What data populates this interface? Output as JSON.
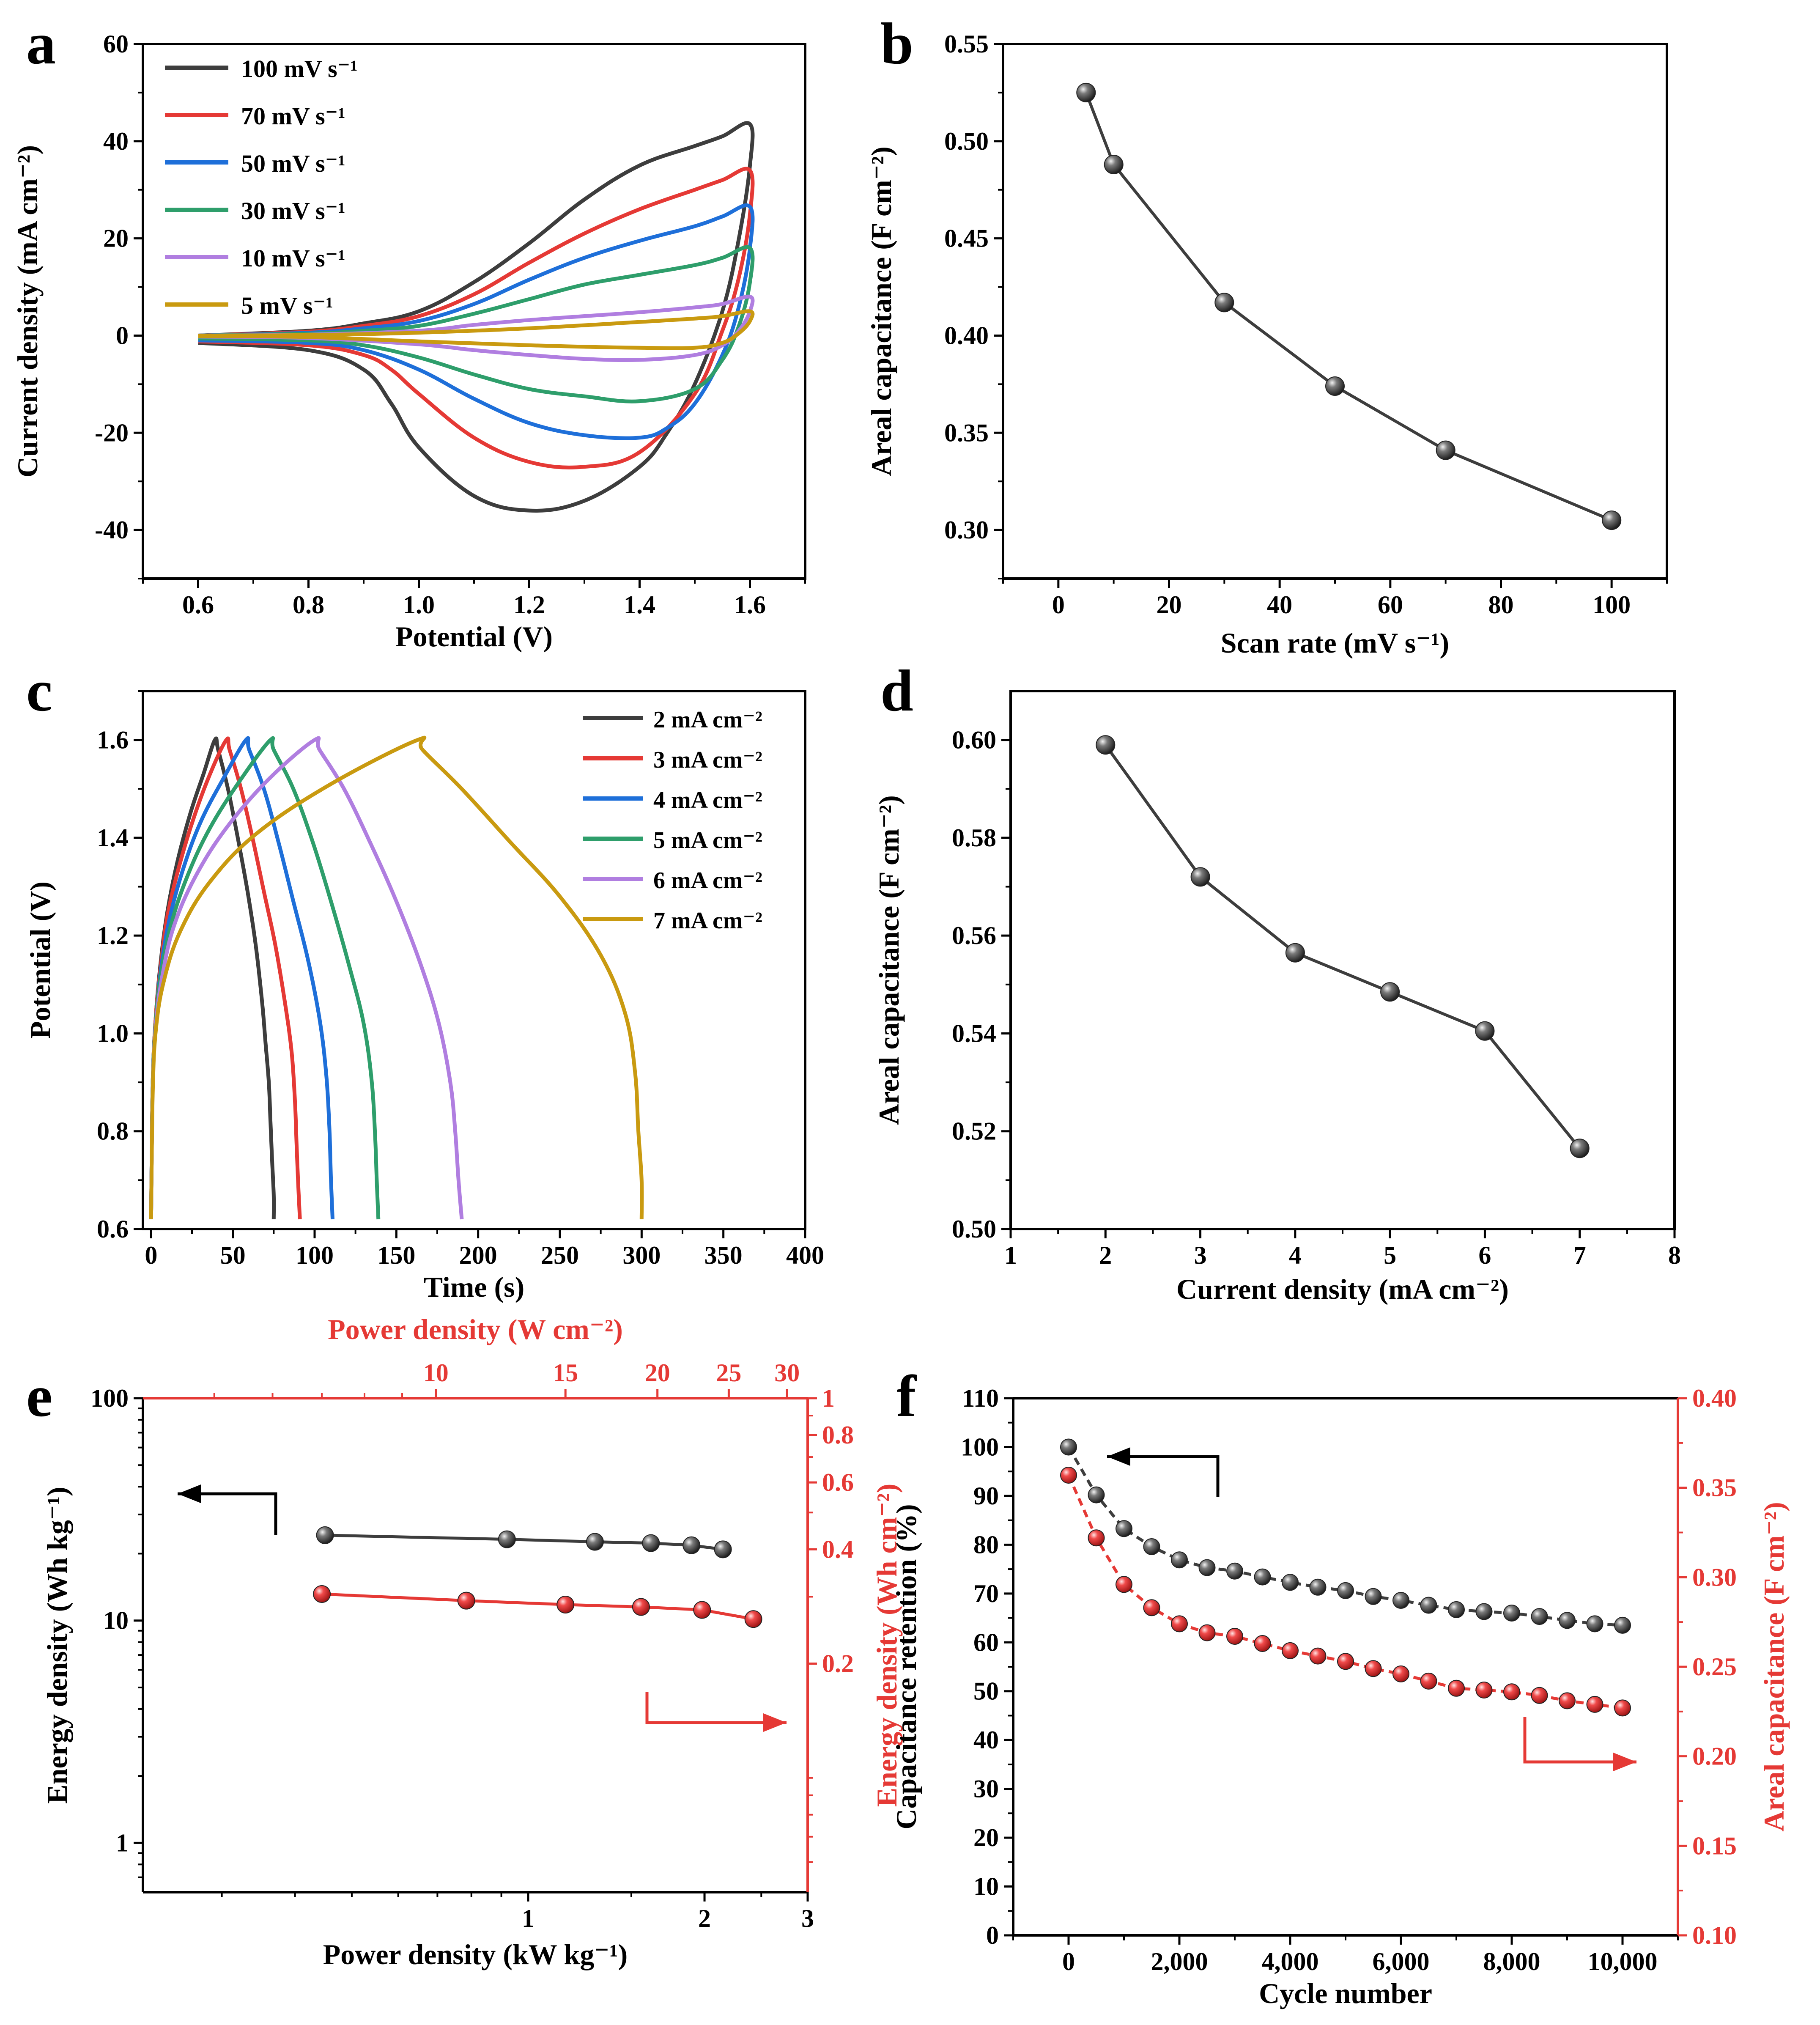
{
  "chart_data": [
    {
      "panel": "a",
      "type": "line",
      "xlabel": "Potential (V)",
      "ylabel": "Current density (mA cm⁻²)",
      "xlim": [
        0.5,
        1.7
      ],
      "ylim": [
        -50,
        60
      ],
      "xticks": [
        "0.6",
        "0.8",
        "1.0",
        "1.2",
        "1.4",
        "1.6"
      ],
      "yticks": [
        "-40",
        "-20",
        "0",
        "20",
        "40",
        "60"
      ],
      "legend": "top-left",
      "series": [
        {
          "name": "100 mV s⁻¹",
          "color": "#3d3d3d",
          "x": [
            0.6,
            0.8,
            0.9,
            1.0,
            1.1,
            1.2,
            1.3,
            1.4,
            1.5,
            1.55,
            1.6,
            1.6,
            1.58,
            1.55,
            1.5,
            1.45,
            1.4,
            1.3,
            1.2,
            1.1,
            1.0,
            0.95,
            0.9,
            0.8,
            0.6
          ],
          "y": [
            0,
            1,
            2.5,
            5,
            11,
            19,
            28,
            35,
            39,
            41,
            43.5,
            35,
            20,
            5,
            -10,
            -20,
            -27,
            -34,
            -36,
            -33,
            -23,
            -14,
            -7,
            -3,
            -1.5
          ]
        },
        {
          "name": "70 mV s⁻¹",
          "color": "#e53935",
          "x": [
            0.6,
            0.8,
            0.9,
            1.0,
            1.1,
            1.2,
            1.3,
            1.4,
            1.5,
            1.55,
            1.6,
            1.6,
            1.58,
            1.55,
            1.5,
            1.4,
            1.3,
            1.2,
            1.1,
            1.0,
            0.95,
            0.9,
            0.8,
            0.6
          ],
          "y": [
            0,
            0.8,
            2,
            4,
            8.5,
            15,
            21,
            26,
            30,
            32,
            34,
            25,
            12,
            1,
            -12,
            -24,
            -27,
            -26,
            -21,
            -12,
            -7,
            -4,
            -2,
            -1.2
          ]
        },
        {
          "name": "50 mV s⁻¹",
          "color": "#1e6fd9",
          "x": [
            0.6,
            0.8,
            0.9,
            1.0,
            1.1,
            1.2,
            1.3,
            1.4,
            1.5,
            1.55,
            1.6,
            1.6,
            1.58,
            1.55,
            1.5,
            1.45,
            1.4,
            1.3,
            1.2,
            1.1,
            1.0,
            0.9,
            0.8,
            0.6
          ],
          "y": [
            0,
            0.6,
            1.5,
            3,
            6.5,
            11.5,
            16,
            19.5,
            22.5,
            24.5,
            26.5,
            18,
            6,
            -4,
            -14,
            -19,
            -21,
            -20.5,
            -18,
            -13,
            -7,
            -3,
            -1.5,
            -1
          ]
        },
        {
          "name": "30 mV s⁻¹",
          "color": "#2e9e6b",
          "x": [
            0.6,
            0.8,
            0.9,
            1.0,
            1.1,
            1.2,
            1.3,
            1.4,
            1.5,
            1.55,
            1.6,
            1.6,
            1.58,
            1.55,
            1.5,
            1.4,
            1.3,
            1.2,
            1.1,
            1.0,
            0.9,
            0.8,
            0.6
          ],
          "y": [
            0,
            0.4,
            1,
            2,
            4.5,
            7.5,
            10.5,
            12.5,
            14.5,
            16,
            18,
            11,
            2,
            -5,
            -11,
            -13.5,
            -12.5,
            -11,
            -8,
            -4.5,
            -2,
            -1,
            -0.6
          ]
        },
        {
          "name": "10 mV s⁻¹",
          "color": "#b07ee0",
          "x": [
            0.6,
            0.8,
            1.0,
            1.1,
            1.2,
            1.3,
            1.4,
            1.5,
            1.55,
            1.6,
            1.6,
            1.58,
            1.55,
            1.5,
            1.4,
            1.3,
            1.2,
            1.1,
            1.0,
            0.8,
            0.6
          ],
          "y": [
            0,
            0.2,
            1,
            2.2,
            3.2,
            4,
            4.8,
            5.8,
            6.5,
            8,
            5,
            1,
            -2,
            -4,
            -5,
            -4.8,
            -4,
            -3,
            -1.8,
            -0.5,
            -0.2
          ]
        },
        {
          "name": "5 mV s⁻¹",
          "color": "#c99a10",
          "x": [
            0.6,
            0.8,
            1.0,
            1.2,
            1.4,
            1.5,
            1.55,
            1.6,
            1.6,
            1.58,
            1.55,
            1.5,
            1.4,
            1.3,
            1.2,
            1.0,
            0.8,
            0.6
          ],
          "y": [
            0,
            0.1,
            0.6,
            1.5,
            2.8,
            3.5,
            4,
            5,
            3,
            0.5,
            -1.5,
            -2.5,
            -2.5,
            -2.3,
            -2,
            -1.2,
            -0.3,
            -0.1
          ]
        }
      ]
    },
    {
      "panel": "b",
      "type": "line",
      "xlabel": "Scan rate (mV s⁻¹)",
      "ylabel": "Areal capacitance (F cm⁻²)",
      "xlim": [
        -10,
        110
      ],
      "ylim": [
        0.275,
        0.55
      ],
      "xticks": [
        "0",
        "20",
        "40",
        "60",
        "80",
        "100"
      ],
      "yticks": [
        "0.30",
        "0.35",
        "0.40",
        "0.45",
        "0.50",
        "0.55"
      ],
      "series": [
        {
          "name": "Areal capacitance",
          "color": "#3d3d3d",
          "x": [
            5,
            10,
            30,
            50,
            70,
            100
          ],
          "y": [
            0.525,
            0.488,
            0.417,
            0.374,
            0.341,
            0.305
          ]
        }
      ]
    },
    {
      "panel": "c",
      "type": "line",
      "xlabel": "Time (s)",
      "ylabel": "Potential (V)",
      "xlim": [
        -5,
        400
      ],
      "ylim": [
        0.6,
        1.7
      ],
      "xticks": [
        "0",
        "50",
        "100",
        "150",
        "200",
        "250",
        "300",
        "350",
        "400"
      ],
      "yticks": [
        "0.6",
        "0.8",
        "1.0",
        "1.2",
        "1.4",
        "1.6"
      ],
      "legend": "top-right",
      "series": [
        {
          "name": "2 mA cm⁻²",
          "color": "#3d3d3d",
          "x": [
            0,
            1,
            3,
            6,
            10,
            16,
            24,
            32,
            39,
            41,
            47,
            53,
            59,
            64,
            68,
            70,
            72,
            73,
            74,
            75,
            75
          ],
          "y": [
            0.62,
            0.9,
            1.04,
            1.15,
            1.25,
            1.35,
            1.45,
            1.53,
            1.6,
            1.58,
            1.5,
            1.4,
            1.29,
            1.18,
            1.06,
            0.98,
            0.9,
            0.82,
            0.74,
            0.67,
            0.62
          ]
        },
        {
          "name": "3 mA cm⁻²",
          "color": "#e53935",
          "x": [
            0,
            1,
            3,
            6,
            10,
            17,
            26,
            36,
            46,
            48,
            55,
            62,
            69,
            76,
            82,
            86,
            88,
            89,
            90,
            91
          ],
          "y": [
            0.62,
            0.9,
            1.04,
            1.14,
            1.24,
            1.34,
            1.44,
            1.53,
            1.6,
            1.58,
            1.5,
            1.4,
            1.29,
            1.18,
            1.06,
            0.96,
            0.86,
            0.77,
            0.69,
            0.62
          ]
        },
        {
          "name": "4 mA cm⁻²",
          "color": "#1e6fd9",
          "x": [
            0,
            1,
            3,
            6,
            11,
            19,
            30,
            44,
            58,
            60,
            69,
            78,
            87,
            96,
            103,
            107,
            109,
            110,
            111
          ],
          "y": [
            0.62,
            0.9,
            1.03,
            1.13,
            1.23,
            1.33,
            1.43,
            1.52,
            1.6,
            1.58,
            1.5,
            1.39,
            1.27,
            1.15,
            1.03,
            0.92,
            0.81,
            0.7,
            0.62
          ]
        },
        {
          "name": "5 mA cm⁻²",
          "color": "#2e9e6b",
          "x": [
            0,
            1,
            3,
            6,
            12,
            22,
            36,
            55,
            73,
            75,
            87,
            99,
            110,
            121,
            130,
            135,
            137,
            138,
            139
          ],
          "y": [
            0.62,
            0.9,
            1.03,
            1.12,
            1.22,
            1.32,
            1.42,
            1.52,
            1.6,
            1.58,
            1.5,
            1.39,
            1.27,
            1.14,
            1.02,
            0.9,
            0.79,
            0.7,
            0.62
          ]
        },
        {
          "name": "6 mA cm⁻²",
          "color": "#b07ee0",
          "x": [
            0,
            1,
            3,
            7,
            14,
            27,
            46,
            72,
            100,
            103,
            118,
            134,
            150,
            165,
            176,
            183,
            186,
            188,
            190
          ],
          "y": [
            0.62,
            0.89,
            1.02,
            1.12,
            1.22,
            1.32,
            1.42,
            1.52,
            1.6,
            1.58,
            1.5,
            1.39,
            1.27,
            1.14,
            1.02,
            0.9,
            0.8,
            0.7,
            0.62
          ]
        },
        {
          "name": "7 mA cm⁻²",
          "color": "#c99a10",
          "x": [
            0,
            1,
            3,
            8,
            18,
            36,
            65,
            110,
            163,
            166,
            190,
            220,
            250,
            275,
            290,
            296,
            298,
            300,
            300
          ],
          "y": [
            0.62,
            0.88,
            1.01,
            1.11,
            1.21,
            1.31,
            1.41,
            1.51,
            1.6,
            1.58,
            1.5,
            1.39,
            1.28,
            1.16,
            1.04,
            0.92,
            0.8,
            0.7,
            0.62
          ]
        }
      ]
    },
    {
      "panel": "d",
      "type": "line",
      "xlabel": "Current density (mA cm⁻²)",
      "ylabel": "Areal capacitance (F cm⁻²)",
      "xlim": [
        1,
        8
      ],
      "ylim": [
        0.5,
        0.61
      ],
      "xticks": [
        "1",
        "2",
        "3",
        "4",
        "5",
        "6",
        "7",
        "8"
      ],
      "yticks": [
        "0.50",
        "0.52",
        "0.54",
        "0.56",
        "0.58",
        "0.60"
      ],
      "series": [
        {
          "name": "Areal capacitance",
          "color": "#3d3d3d",
          "x": [
            2,
            3,
            4,
            5,
            6,
            7
          ],
          "y": [
            0.599,
            0.572,
            0.5565,
            0.5485,
            0.5405,
            0.5165
          ]
        }
      ]
    },
    {
      "panel": "e",
      "type": "line",
      "xlabel": "Power density (kW kg⁻¹)",
      "ylabel": "Energy density (Wh kg⁻¹)",
      "x2label": "Power density (W cm⁻²)",
      "y2label": "Energy density (Wh cm⁻²)",
      "xscale": "log",
      "yscale": "log",
      "xlim": [
        0.22,
        3
      ],
      "ylim": [
        0.6,
        100
      ],
      "x2lim": [
        4,
        32
      ],
      "y2lim": [
        0.05,
        1
      ],
      "xticks": [
        "1",
        "2",
        "3"
      ],
      "yticks": [
        "1",
        "10",
        "100"
      ],
      "x2ticks": [
        "10",
        "15",
        "20",
        "25",
        "30"
      ],
      "y2ticks": [
        "0.2",
        "0.4",
        "0.6",
        "0.8",
        "1"
      ],
      "series": [
        {
          "name": "Energy density (Wh kg⁻¹)",
          "color": "#3d3d3d",
          "axis": "left-bottom",
          "x": [
            0.45,
            0.92,
            1.3,
            1.62,
            1.9,
            2.15
          ],
          "y": [
            24.2,
            23.2,
            22.6,
            22.3,
            21.8,
            20.9
          ]
        },
        {
          "name": "Energy density (Wh cm⁻²)",
          "color": "#e53935",
          "axis": "right-top",
          "x": [
            7,
            11,
            15,
            19,
            23,
            27
          ],
          "y": [
            0.305,
            0.293,
            0.286,
            0.282,
            0.277,
            0.262
          ]
        }
      ]
    },
    {
      "panel": "f",
      "type": "line",
      "xlabel": "Cycle number",
      "ylabel": "Capacitance retention (%)",
      "y2label": "Areal capacitance (F cm⁻²)",
      "xlim": [
        -1000,
        11000
      ],
      "ylim": [
        0,
        110
      ],
      "y2lim": [
        0.1,
        0.4
      ],
      "xticks": [
        "0",
        "2,000",
        "4,000",
        "6,000",
        "8,000",
        "10,000"
      ],
      "yticks": [
        "0",
        "10",
        "20",
        "30",
        "40",
        "50",
        "60",
        "70",
        "80",
        "90",
        "100",
        "110"
      ],
      "y2ticks": [
        "0.10",
        "0.15",
        "0.20",
        "0.25",
        "0.30",
        "0.35",
        "0.40"
      ],
      "series": [
        {
          "name": "Capacitance retention (%)",
          "color": "#3d3d3d",
          "axis": "left",
          "x": [
            0,
            500,
            1000,
            1500,
            2000,
            2500,
            3000,
            3500,
            4000,
            4500,
            5000,
            5500,
            6000,
            6500,
            7000,
            7500,
            8000,
            8500,
            9000,
            9500,
            10000
          ],
          "y": [
            100,
            90.2,
            83.3,
            79.6,
            76.9,
            75.3,
            74.6,
            73.4,
            72.3,
            71.3,
            70.6,
            69.4,
            68.6,
            67.6,
            66.7,
            66.3,
            66.0,
            65.3,
            64.5,
            63.8,
            63.5
          ]
        },
        {
          "name": "Areal capacitance (F cm⁻²)",
          "color": "#e53935",
          "axis": "right",
          "x": [
            0,
            500,
            1000,
            1500,
            2000,
            2500,
            3000,
            3500,
            4000,
            4500,
            5000,
            5500,
            6000,
            6500,
            7000,
            7500,
            8000,
            8500,
            9000,
            9500,
            10000
          ],
          "y": [
            0.357,
            0.322,
            0.296,
            0.283,
            0.274,
            0.269,
            0.267,
            0.263,
            0.259,
            0.256,
            0.253,
            0.249,
            0.246,
            0.242,
            0.238,
            0.237,
            0.236,
            0.234,
            0.231,
            0.229,
            0.227
          ]
        }
      ]
    }
  ]
}
